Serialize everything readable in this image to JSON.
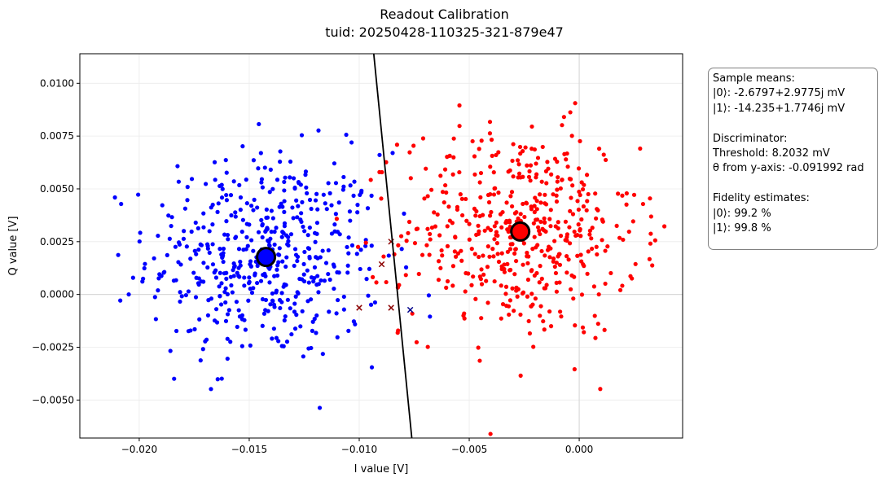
{
  "chart_data": {
    "type": "scatter",
    "title": "Readout Calibration",
    "subtitle": "tuid: 20250428-110325-321-879e47",
    "xlabel": "I value [V]",
    "ylabel": "Q value [V]",
    "xlim": [
      -0.0227,
      0.0047
    ],
    "ylim": [
      -0.0068,
      0.0114
    ],
    "xticks": [
      -0.02,
      -0.015,
      -0.01,
      -0.005,
      0.0
    ],
    "xtick_labels": [
      "−0.020",
      "−0.015",
      "−0.010",
      "−0.005",
      "0.000"
    ],
    "yticks": [
      -0.005,
      -0.0025,
      0.0,
      0.0025,
      0.005,
      0.0075,
      0.01
    ],
    "ytick_labels": [
      "−0.0050",
      "−0.0025",
      "0.0000",
      "0.0025",
      "0.0050",
      "0.0075",
      "0.0100"
    ],
    "grid": true,
    "series": [
      {
        "color": "#0000ff",
        "marker": "dot",
        "count": 500,
        "center": [
          -0.01424,
          0.00177
        ],
        "spread": [
          0.0029,
          0.0027
        ]
      },
      {
        "color": "#ff0000",
        "marker": "dot",
        "count": 500,
        "center": [
          -0.00268,
          0.00298
        ],
        "spread": [
          0.0029,
          0.0027
        ]
      },
      {
        "color": "#8b0000",
        "marker": "x",
        "points": [
          [
            -0.01,
            -0.00063
          ],
          [
            -0.00855,
            -0.00063
          ],
          [
            -0.00898,
            0.00143
          ],
          [
            -0.00855,
            0.0025
          ]
        ]
      },
      {
        "color": "#00008b",
        "marker": "x",
        "points": [
          [
            -0.00768,
            -0.00073
          ]
        ]
      }
    ],
    "means": [
      {
        "x": -0.014235,
        "y": 0.0017746,
        "color": "#0000ff"
      },
      {
        "x": -0.0026797,
        "y": 0.0029775,
        "color": "#ff0000"
      }
    ],
    "discriminator_line": {
      "from": [
        -0.00934,
        0.0114
      ],
      "to": [
        -0.00761,
        -0.0068
      ],
      "color": "#000000"
    }
  },
  "info_box": {
    "lines": [
      "Sample means:",
      "|0⟩: -2.6797+2.9775j mV",
      "|1⟩: -14.235+1.7746j mV",
      "",
      "Discriminator:",
      "Threshold: 8.2032 mV",
      "θ from y-axis: -0.091992 rad",
      "",
      "Fidelity estimates:",
      "|0⟩: 99.2 %",
      "|1⟩: 99.8 %"
    ]
  }
}
